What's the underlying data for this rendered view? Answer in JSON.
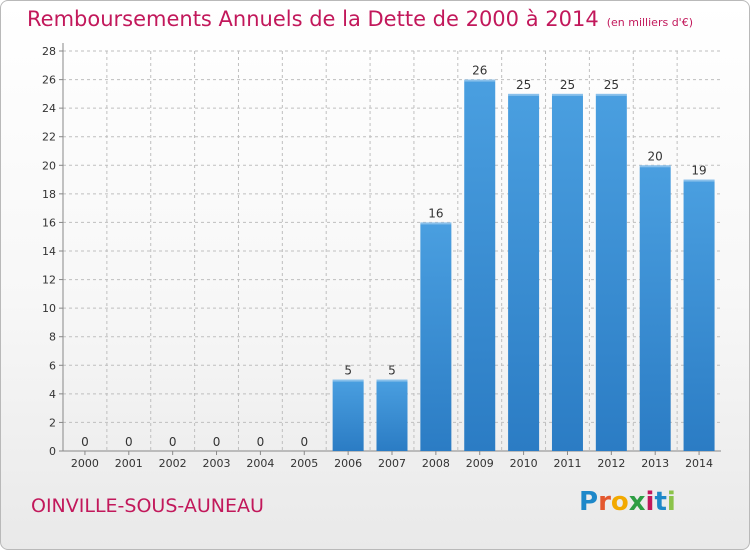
{
  "header": {
    "title": "Remboursements Annuels de la Dette de 2000 à 2014",
    "subtitle": "(en milliers d'€)"
  },
  "footer": {
    "town": "OINVILLE-SOUS-AUNEAU",
    "logo_letters": [
      "P",
      "r",
      "o",
      "x",
      "i",
      "t",
      "i"
    ],
    "logo_colors": [
      "#1e88c9",
      "#e4572e",
      "#f2a900",
      "#2e9e44",
      "#c2185b",
      "#1e88c9",
      "#8bc34a"
    ]
  },
  "colors": {
    "bar": "#4a9fe0",
    "bar_dark": "#2b7cc4",
    "title": "#c2185b",
    "grid": "#bfbfbf"
  },
  "chart_data": {
    "type": "bar",
    "title": "Remboursements Annuels de la Dette de 2000 à 2014",
    "subtitle": "(en milliers d'€)",
    "categories": [
      "2000",
      "2001",
      "2002",
      "2003",
      "2004",
      "2005",
      "2006",
      "2007",
      "2008",
      "2009",
      "2010",
      "2011",
      "2012",
      "2013",
      "2014"
    ],
    "values": [
      0,
      0,
      0,
      0,
      0,
      0,
      5,
      5,
      16,
      26,
      25,
      25,
      25,
      20,
      19
    ],
    "xlabel": "",
    "ylabel": "",
    "ylim": [
      0,
      28
    ],
    "yticks": [
      0,
      2,
      4,
      6,
      8,
      10,
      12,
      14,
      16,
      18,
      20,
      22,
      24,
      26,
      28
    ],
    "grid": true
  }
}
